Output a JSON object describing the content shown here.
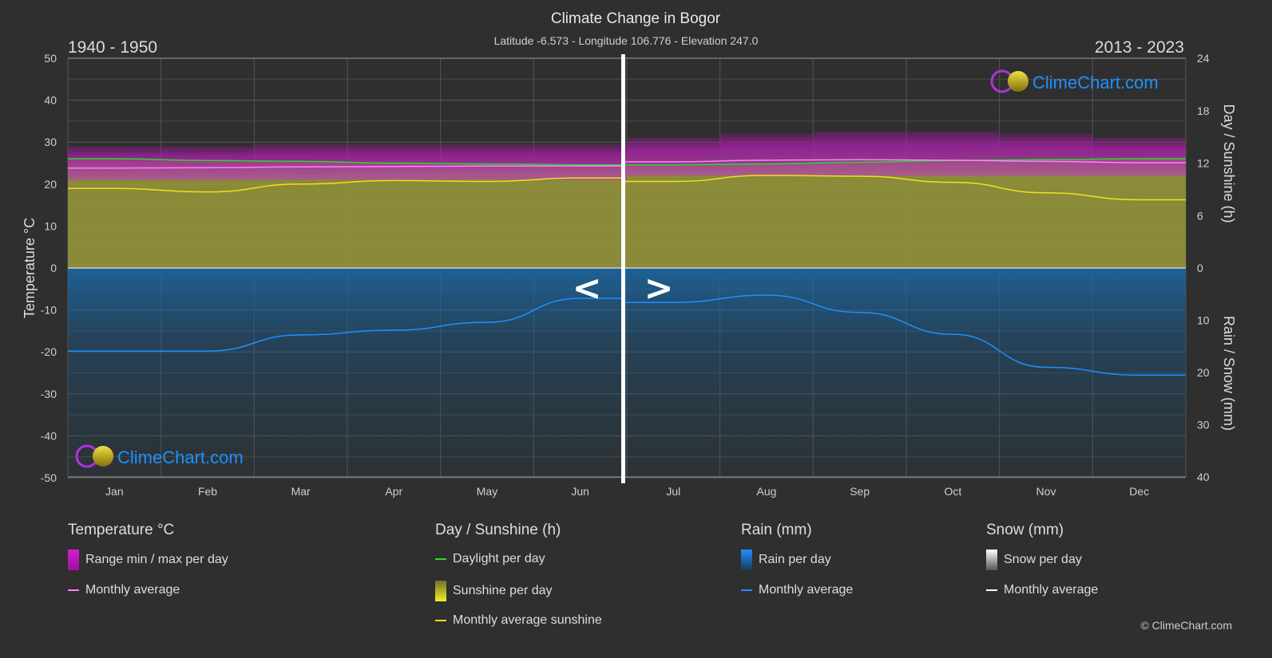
{
  "header": {
    "title": "Climate Change in Bogor",
    "subtitle": "Latitude -6.573 - Longitude 106.776 - Elevation 247.0",
    "left_period": "1940 - 1950",
    "right_period": "2013 - 2023",
    "nav_prev": "<",
    "nav_next": ">"
  },
  "logo_text": "ClimeChart.com",
  "copyright": "© ClimeChart.com",
  "colors": {
    "background": "#2f2f2f",
    "temp_range": "#c020c0",
    "temp_avg": "#ff80ff",
    "daylight": "#22dd22",
    "sunshine_fill": "#9a9a3a",
    "sunshine_avg": "#f0e020",
    "rain_fill": "#1a6aa8",
    "rain_avg": "#1e90ff",
    "snow_avg": "#ffffff",
    "logo": "#1e90ff"
  },
  "chart_data": {
    "type": "area",
    "title": "Climate Change in Bogor",
    "categories": [
      "Jan",
      "Feb",
      "Mar",
      "Apr",
      "May",
      "Jun",
      "Jul",
      "Aug",
      "Sep",
      "Oct",
      "Nov",
      "Dec"
    ],
    "periods": {
      "Jan-Jun": "1940 - 1950",
      "Jul-Dec": "2013 - 2023"
    },
    "y_left": {
      "label": "Temperature °C",
      "range": [
        -50,
        50
      ],
      "ticks": [
        50,
        40,
        30,
        20,
        10,
        0,
        -10,
        -20,
        -30,
        -40,
        -50
      ]
    },
    "y_right_top": {
      "label": "Day / Sunshine (h)",
      "range": [
        0,
        24
      ],
      "ticks": [
        24,
        18,
        12,
        6,
        0
      ]
    },
    "y_right_bottom": {
      "label": "Rain / Snow (mm)",
      "range": [
        0,
        40
      ],
      "ticks": [
        0,
        10,
        20,
        30,
        40
      ]
    },
    "grid": true,
    "series": [
      {
        "name": "Range min / max per day",
        "unit": "°C",
        "min": [
          21,
          21,
          21,
          21,
          21,
          21,
          22,
          22,
          22,
          22,
          22,
          22
        ],
        "max": [
          29,
          29,
          29.5,
          29.5,
          29.5,
          29.5,
          31,
          32,
          32.5,
          32.5,
          32,
          31
        ]
      },
      {
        "name": "Monthly average",
        "group": "Temperature °C",
        "values": [
          23.8,
          23.9,
          24.1,
          24.2,
          24.3,
          24.3,
          25.3,
          25.7,
          25.8,
          25.7,
          25.4,
          25.1
        ]
      },
      {
        "name": "Daylight per day",
        "unit": "h",
        "values": [
          12.5,
          12.3,
          12.2,
          12.0,
          11.9,
          11.8,
          11.8,
          11.9,
          12.1,
          12.3,
          12.4,
          12.5
        ]
      },
      {
        "name": "Monthly average sunshine",
        "unit": "h",
        "values": [
          9.1,
          8.7,
          9.6,
          10.0,
          9.9,
          10.3,
          9.9,
          10.6,
          10.5,
          9.8,
          8.6,
          7.8
        ]
      },
      {
        "name": "Monthly average",
        "group": "Rain (mm)",
        "values": [
          15.9,
          15.9,
          12.8,
          11.9,
          10.4,
          5.8,
          6.6,
          5.2,
          8.5,
          12.7,
          19.0,
          20.5
        ]
      }
    ]
  },
  "legend": {
    "temperature": {
      "heading": "Temperature °C",
      "range": "Range min / max per day",
      "avg": "Monthly average"
    },
    "sunshine": {
      "heading": "Day / Sunshine (h)",
      "daylight": "Daylight per day",
      "sunshine": "Sunshine per day",
      "avg": "Monthly average sunshine"
    },
    "rain": {
      "heading": "Rain (mm)",
      "per_day": "Rain per day",
      "avg": "Monthly average"
    },
    "snow": {
      "heading": "Snow (mm)",
      "per_day": "Snow per day",
      "avg": "Monthly average"
    }
  }
}
